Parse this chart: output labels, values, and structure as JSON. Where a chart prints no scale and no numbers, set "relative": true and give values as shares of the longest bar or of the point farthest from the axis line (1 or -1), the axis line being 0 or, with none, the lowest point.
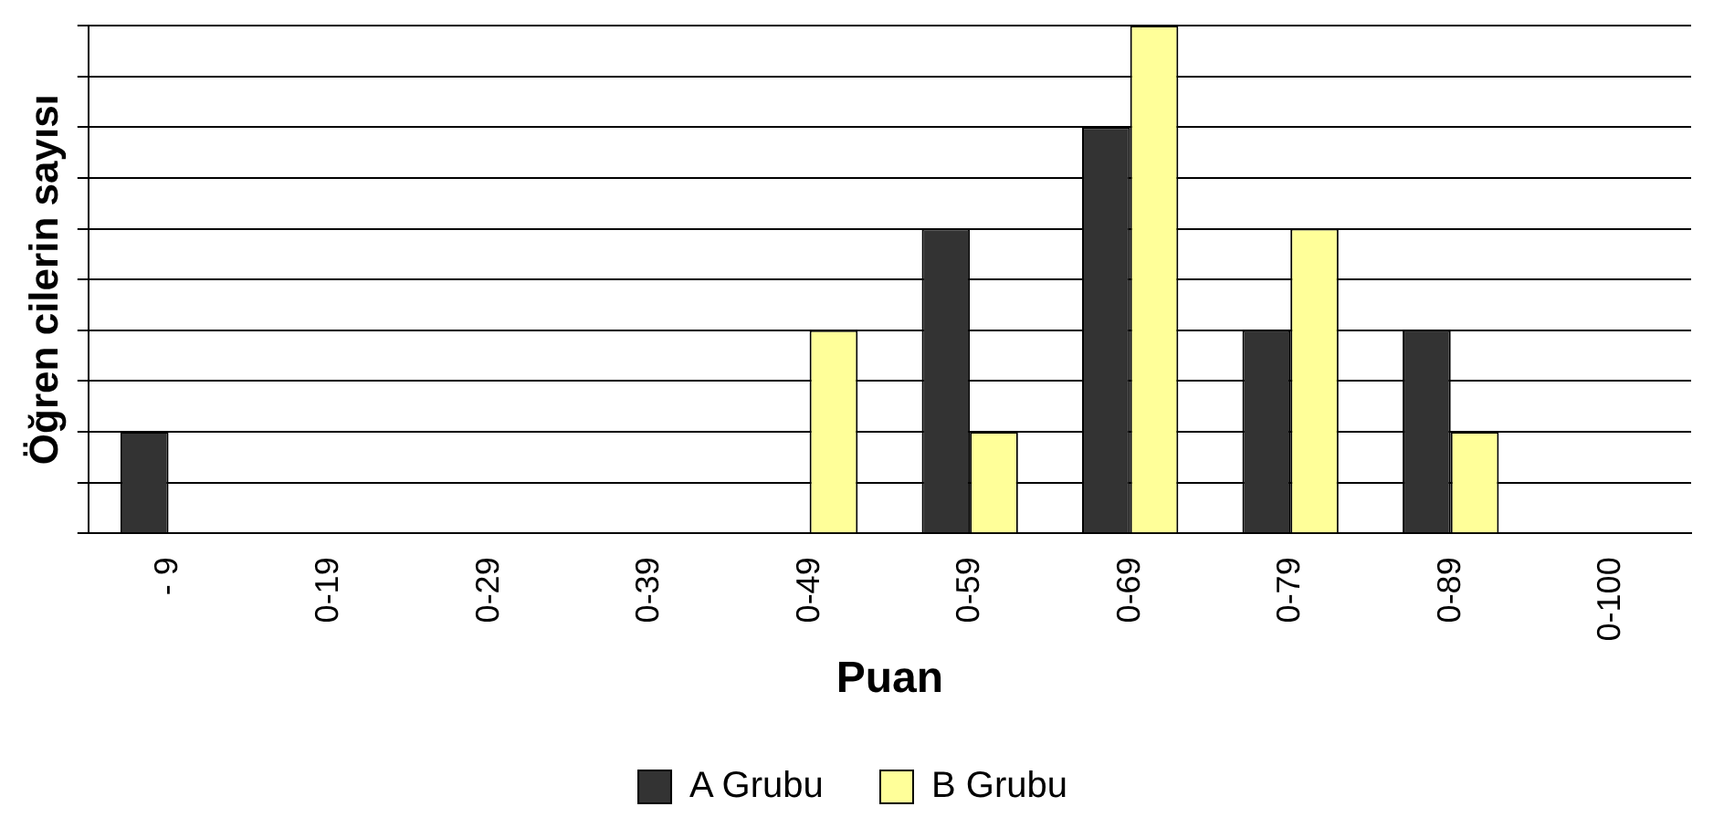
{
  "chart_data": {
    "type": "bar",
    "relative": true,
    "xlabel": "Puan",
    "ylabel": "Öğren cilerin sayısı",
    "categories": [
      "- 9",
      "0-19",
      "0-29",
      "0-39",
      "0-49",
      "0-59",
      "0-69",
      "0-79",
      "0-89",
      "0-100"
    ],
    "series": [
      {
        "name": "A Grubu",
        "color": "#333333",
        "values": [
          0.2,
          0,
          0,
          0,
          0,
          0.6,
          0.8,
          0.4,
          0.4,
          0
        ]
      },
      {
        "name": "B Grubu",
        "color": "#ffff99",
        "values": [
          0,
          0,
          0,
          0,
          0.4,
          0.2,
          1,
          0.6,
          0.2,
          0
        ]
      }
    ],
    "grid": "y",
    "legend": "bottom"
  }
}
